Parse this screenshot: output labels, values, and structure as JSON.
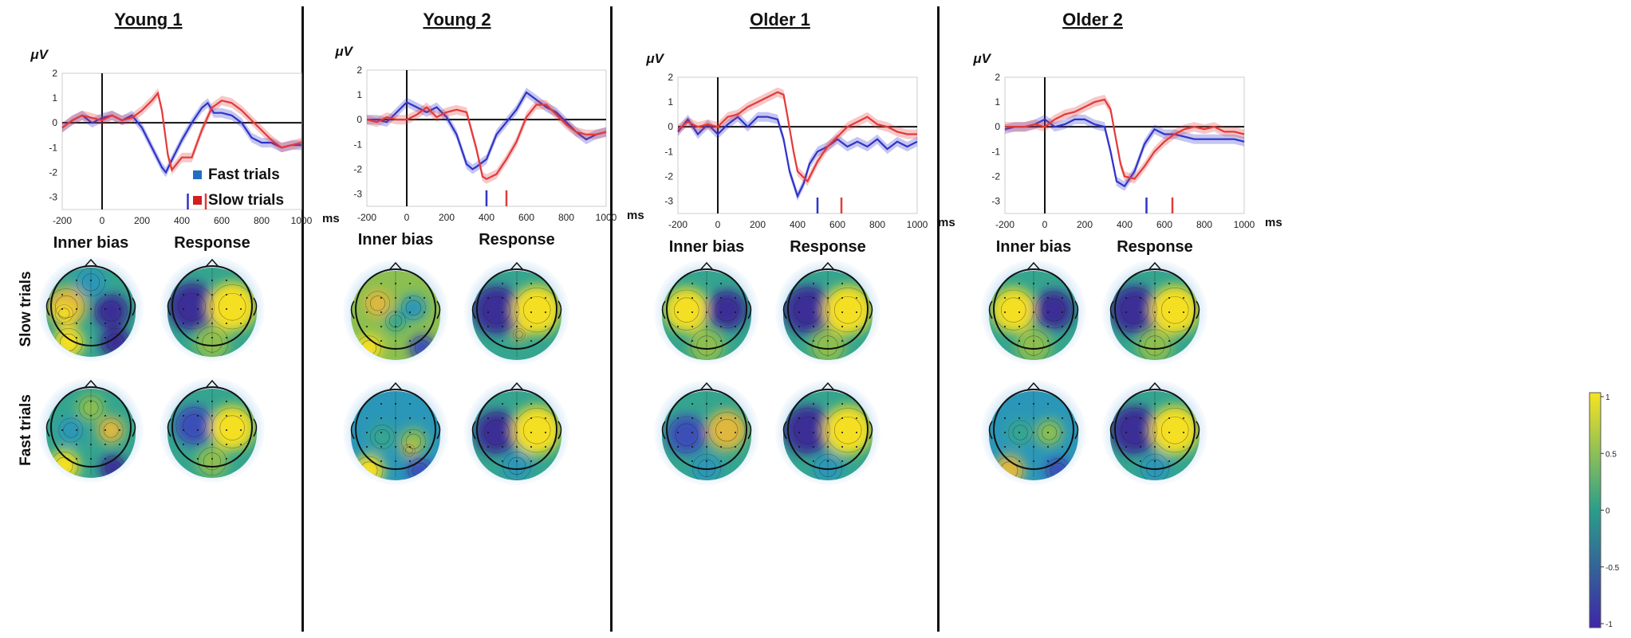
{
  "figure": {
    "unit_label": "μV",
    "x_unit_label": "ms",
    "legend": [
      {
        "label": "Fast trials",
        "color": "#1f6fc5"
      },
      {
        "label": "Slow trials",
        "color": "#d0201f"
      }
    ],
    "row_labels": [
      "Slow trials",
      "Fast trials"
    ],
    "col_labels": [
      "Inner bias",
      "Response"
    ],
    "colorbar": {
      "ticks": [
        "1",
        "0.5",
        "0",
        "-0.5",
        "-1"
      ],
      "colors": [
        "#f7e321",
        "#2a9e8a",
        "#3e26a8"
      ]
    }
  },
  "chart_data": [
    {
      "type": "line",
      "title": "Young 1",
      "xlabel": "ms",
      "ylabel": "μV",
      "xlim": [
        -200,
        1000
      ],
      "ylim": [
        -3.5,
        2
      ],
      "xticks": [
        "-200",
        "0",
        "200",
        "400",
        "600",
        "800",
        "1000"
      ],
      "yticks": [
        "2",
        "1",
        "0",
        "-1",
        "-2",
        "-3"
      ],
      "series": [
        {
          "name": "Fast trials",
          "color": "#2f33c8",
          "x": [
            -200,
            -150,
            -100,
            -50,
            0,
            50,
            100,
            150,
            200,
            250,
            300,
            320,
            350,
            400,
            450,
            500,
            530,
            560,
            600,
            650,
            700,
            750,
            800,
            850,
            900,
            950,
            1000
          ],
          "y": [
            -0.2,
            0.1,
            0.3,
            0.0,
            0.2,
            0.3,
            0.1,
            0.3,
            -0.2,
            -1.0,
            -1.8,
            -2.0,
            -1.5,
            -0.7,
            0.0,
            0.6,
            0.8,
            0.4,
            0.4,
            0.3,
            0.0,
            -0.6,
            -0.8,
            -0.8,
            -1.0,
            -0.9,
            -0.9
          ]
        },
        {
          "name": "Slow trials",
          "color": "#e33a3a",
          "x": [
            -200,
            -150,
            -100,
            -50,
            0,
            50,
            100,
            150,
            200,
            250,
            280,
            300,
            330,
            350,
            380,
            400,
            450,
            500,
            550,
            600,
            650,
            700,
            750,
            800,
            850,
            900,
            950,
            1000
          ],
          "y": [
            -0.2,
            0.1,
            0.3,
            0.2,
            0.1,
            0.3,
            0.1,
            0.2,
            0.5,
            0.9,
            1.2,
            0.5,
            -1.3,
            -1.9,
            -1.6,
            -1.4,
            -1.4,
            -0.3,
            0.6,
            0.9,
            0.8,
            0.5,
            0.1,
            -0.3,
            -0.7,
            -1.0,
            -0.9,
            -0.8
          ]
        }
      ],
      "markers": [
        {
          "x": 430,
          "series": "Fast trials"
        },
        {
          "x": 520,
          "series": "Slow trials"
        }
      ]
    },
    {
      "type": "line",
      "title": "Young 2",
      "xlabel": "ms",
      "ylabel": "μV",
      "xlim": [
        -200,
        1000
      ],
      "ylim": [
        -3.5,
        2
      ],
      "xticks": [
        "-200",
        "0",
        "200",
        "400",
        "600",
        "800",
        "1000"
      ],
      "yticks": [
        "2",
        "1",
        "0",
        "-1",
        "-2",
        "-3"
      ],
      "series": [
        {
          "name": "Fast trials",
          "color": "#2f33c8",
          "x": [
            -200,
            -150,
            -100,
            -50,
            0,
            50,
            100,
            150,
            200,
            250,
            300,
            330,
            350,
            400,
            450,
            500,
            550,
            600,
            650,
            700,
            750,
            800,
            850,
            900,
            950,
            1000
          ],
          "y": [
            0.0,
            0.0,
            -0.1,
            0.3,
            0.7,
            0.5,
            0.3,
            0.5,
            0.1,
            -0.6,
            -1.8,
            -2.0,
            -1.9,
            -1.6,
            -0.6,
            -0.1,
            0.4,
            1.1,
            0.8,
            0.5,
            0.3,
            -0.1,
            -0.5,
            -0.8,
            -0.6,
            -0.5
          ]
        },
        {
          "name": "Slow trials",
          "color": "#e33a3a",
          "x": [
            -200,
            -150,
            -100,
            -50,
            0,
            50,
            100,
            150,
            200,
            250,
            300,
            350,
            380,
            400,
            450,
            500,
            550,
            600,
            650,
            700,
            750,
            800,
            850,
            900,
            950,
            1000
          ],
          "y": [
            0.0,
            -0.1,
            0.1,
            0.0,
            0.0,
            0.2,
            0.5,
            0.1,
            0.3,
            0.4,
            0.3,
            -1.2,
            -2.3,
            -2.4,
            -2.2,
            -1.6,
            -0.9,
            0.1,
            0.6,
            0.6,
            0.2,
            -0.2,
            -0.5,
            -0.6,
            -0.6,
            -0.5
          ]
        }
      ],
      "markers": [
        {
          "x": 400,
          "series": "Fast trials"
        },
        {
          "x": 500,
          "series": "Slow trials"
        }
      ]
    },
    {
      "type": "line",
      "title": "Older 1",
      "xlabel": "ms",
      "ylabel": "μV",
      "xlim": [
        -200,
        1000
      ],
      "ylim": [
        -3.5,
        2
      ],
      "xticks": [
        "-200",
        "0",
        "200",
        "400",
        "600",
        "800",
        "1000"
      ],
      "yticks": [
        "2",
        "1",
        "0",
        "-1",
        "-2",
        "-3"
      ],
      "series": [
        {
          "name": "Fast trials",
          "color": "#2f33c8",
          "x": [
            -200,
            -150,
            -100,
            -50,
            0,
            50,
            100,
            150,
            200,
            250,
            300,
            330,
            360,
            400,
            430,
            460,
            500,
            550,
            600,
            650,
            700,
            750,
            800,
            850,
            900,
            950,
            1000
          ],
          "y": [
            -0.2,
            0.3,
            -0.3,
            0.1,
            -0.3,
            0.1,
            0.4,
            0.0,
            0.4,
            0.4,
            0.3,
            -0.5,
            -1.8,
            -2.8,
            -2.3,
            -1.5,
            -1.0,
            -0.8,
            -0.5,
            -0.8,
            -0.6,
            -0.8,
            -0.5,
            -0.9,
            -0.6,
            -0.8,
            -0.6
          ]
        },
        {
          "name": "Slow trials",
          "color": "#e33a3a",
          "x": [
            -200,
            -150,
            -100,
            -50,
            0,
            50,
            100,
            150,
            200,
            250,
            300,
            330,
            350,
            380,
            400,
            450,
            500,
            550,
            600,
            650,
            700,
            750,
            800,
            850,
            900,
            950,
            1000
          ],
          "y": [
            -0.1,
            0.2,
            0.0,
            0.1,
            0.0,
            0.4,
            0.5,
            0.8,
            1.0,
            1.2,
            1.4,
            1.3,
            0.4,
            -1.0,
            -1.8,
            -2.2,
            -1.4,
            -0.8,
            -0.4,
            0.0,
            0.2,
            0.4,
            0.1,
            0.0,
            -0.2,
            -0.3,
            -0.3
          ]
        }
      ],
      "markers": [
        {
          "x": 500,
          "series": "Fast trials"
        },
        {
          "x": 620,
          "series": "Slow trials"
        }
      ]
    },
    {
      "type": "line",
      "title": "Older 2",
      "xlabel": "ms",
      "ylabel": "μV",
      "xlim": [
        -200,
        1000
      ],
      "ylim": [
        -3.5,
        2
      ],
      "xticks": [
        "-200",
        "0",
        "200",
        "400",
        "600",
        "800",
        "1000"
      ],
      "yticks": [
        "2",
        "1",
        "0",
        "-1",
        "-2",
        "-3"
      ],
      "series": [
        {
          "name": "Fast trials",
          "color": "#2f33c8",
          "x": [
            -200,
            -150,
            -100,
            -50,
            0,
            50,
            100,
            150,
            200,
            250,
            300,
            330,
            360,
            400,
            450,
            500,
            550,
            600,
            650,
            700,
            750,
            800,
            850,
            900,
            950,
            1000
          ],
          "y": [
            -0.1,
            0.0,
            0.0,
            0.1,
            0.3,
            0.0,
            0.1,
            0.3,
            0.3,
            0.1,
            0.0,
            -1.0,
            -2.2,
            -2.4,
            -1.8,
            -0.7,
            -0.1,
            -0.3,
            -0.3,
            -0.4,
            -0.5,
            -0.5,
            -0.5,
            -0.5,
            -0.5,
            -0.6
          ]
        },
        {
          "name": "Slow trials",
          "color": "#e33a3a",
          "x": [
            -200,
            -150,
            -100,
            -50,
            0,
            50,
            100,
            150,
            200,
            250,
            300,
            330,
            350,
            380,
            400,
            450,
            500,
            550,
            600,
            650,
            700,
            750,
            800,
            850,
            900,
            950,
            1000
          ],
          "y": [
            0.0,
            0.0,
            0.0,
            0.1,
            0.0,
            0.3,
            0.5,
            0.6,
            0.8,
            1.0,
            1.1,
            0.7,
            -0.2,
            -1.5,
            -2.0,
            -2.1,
            -1.6,
            -1.0,
            -0.6,
            -0.3,
            -0.1,
            0.0,
            -0.1,
            0.0,
            -0.2,
            -0.2,
            -0.3
          ]
        }
      ],
      "markers": [
        {
          "x": 510,
          "series": "Fast trials"
        },
        {
          "x": 640,
          "series": "Slow trials"
        }
      ]
    }
  ]
}
